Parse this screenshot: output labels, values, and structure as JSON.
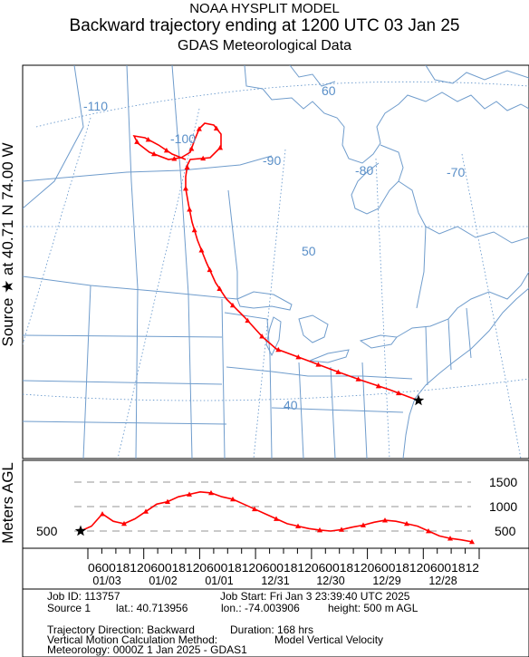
{
  "header": {
    "line1": "NOAA HYSPLIT MODEL",
    "line2": "Backward trajectory ending at 1200 UTC 03 Jan 25",
    "line3": "GDAS Meteorological Data"
  },
  "side_label": "Source ★ at   40.71 N   74.00 W",
  "map": {
    "meridian_labels": [
      "-110",
      "-100",
      "-90",
      "-80",
      "-70"
    ],
    "parallel_labels": [
      "60",
      "50",
      "40"
    ],
    "colors": {
      "trajectory": "#ff0000",
      "geography": "#6f9ccc",
      "grid": "#5a8fc8",
      "frame": "#000000"
    }
  },
  "vertical_panel": {
    "ylabel": "Meters AGL",
    "left_tick": "500",
    "right_ticks": [
      "1500",
      "1000",
      "500"
    ],
    "time_ticks": "06001812060018120600181206001812060018120600181206001812",
    "date_labels": [
      "01/03",
      "01/02",
      "01/01",
      "12/31",
      "12/30",
      "12/29",
      "12/28"
    ]
  },
  "chart_data": {
    "type": "line",
    "ylabel": "Meters AGL",
    "y_ticks": [
      500,
      1000,
      1500
    ],
    "series": [
      {
        "values": [
          500,
          600,
          850,
          700,
          650,
          750,
          900,
          1050,
          1100,
          1200,
          1250,
          1300,
          1280,
          1200,
          1150,
          1050,
          950,
          850,
          750,
          650,
          600,
          550,
          520,
          500,
          530,
          580,
          620,
          680,
          720,
          700,
          650,
          600,
          500,
          400,
          350,
          320,
          280
        ]
      }
    ]
  },
  "footer": {
    "job_id": "Job ID: 113757",
    "job_start": "Job Start: Fri Jan  3 23:39:40 UTC 2025",
    "source": "Source 1",
    "lat": "lat.: 40.713956",
    "lon": "lon.: -74.003906",
    "height": "height: 500 m AGL",
    "direction": "Trajectory Direction: Backward",
    "duration": "Duration: 168 hrs",
    "vertical_method": "Vertical Motion Calculation Method:",
    "vertical_method_value": "Model Vertical Velocity",
    "meteorology": "Meteorology: 0000Z 1 Jan 2025 - GDAS1"
  }
}
